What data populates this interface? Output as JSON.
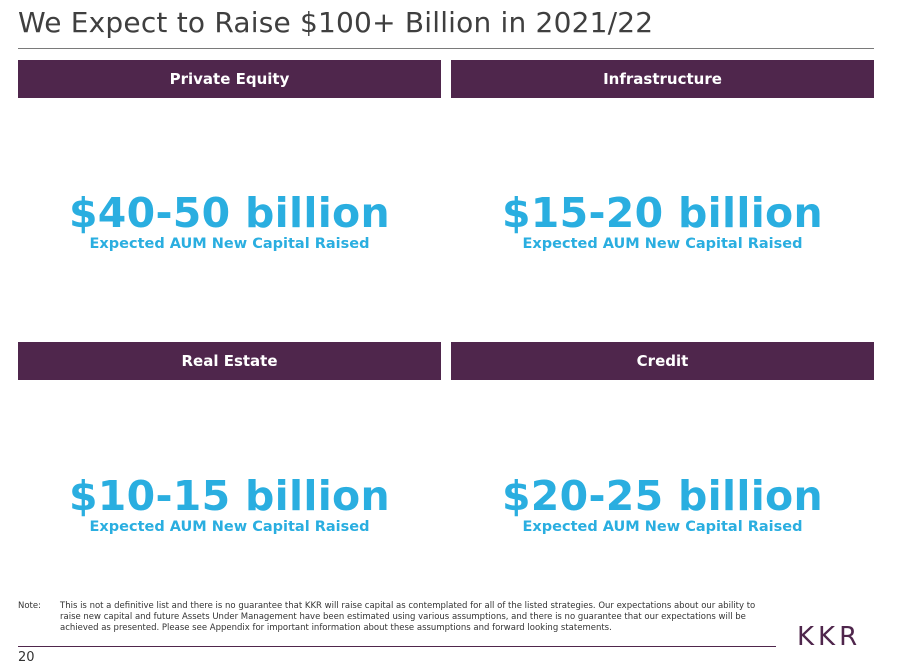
{
  "title": "We Expect to Raise $100+ Billion in 2021/22",
  "segments": [
    {
      "label": "Private Equity",
      "amount": "$40-50 billion",
      "caption": "Expected AUM New Capital Raised"
    },
    {
      "label": "Infrastructure",
      "amount": "$15-20 billion",
      "caption": "Expected AUM New Capital Raised"
    },
    {
      "label": "Real Estate",
      "amount": "$10-15 billion",
      "caption": "Expected AUM New Capital Raised"
    },
    {
      "label": "Credit",
      "amount": "$20-25 billion",
      "caption": "Expected AUM New Capital Raised"
    }
  ],
  "note": {
    "label": "Note:",
    "text": "This is not a definitive list and there is no guarantee that KKR will raise capital as contemplated for all of the listed strategies. Our expectations about our ability to raise new capital and future Assets Under Management have been estimated using various assumptions, and there is no guarantee that our expectations will be achieved as presented. Please see Appendix for important information about these assumptions and forward looking statements."
  },
  "page_number": "20",
  "logo": "KKR",
  "colors": {
    "header_bar": "#4f264c",
    "accent": "#2aaee0"
  }
}
